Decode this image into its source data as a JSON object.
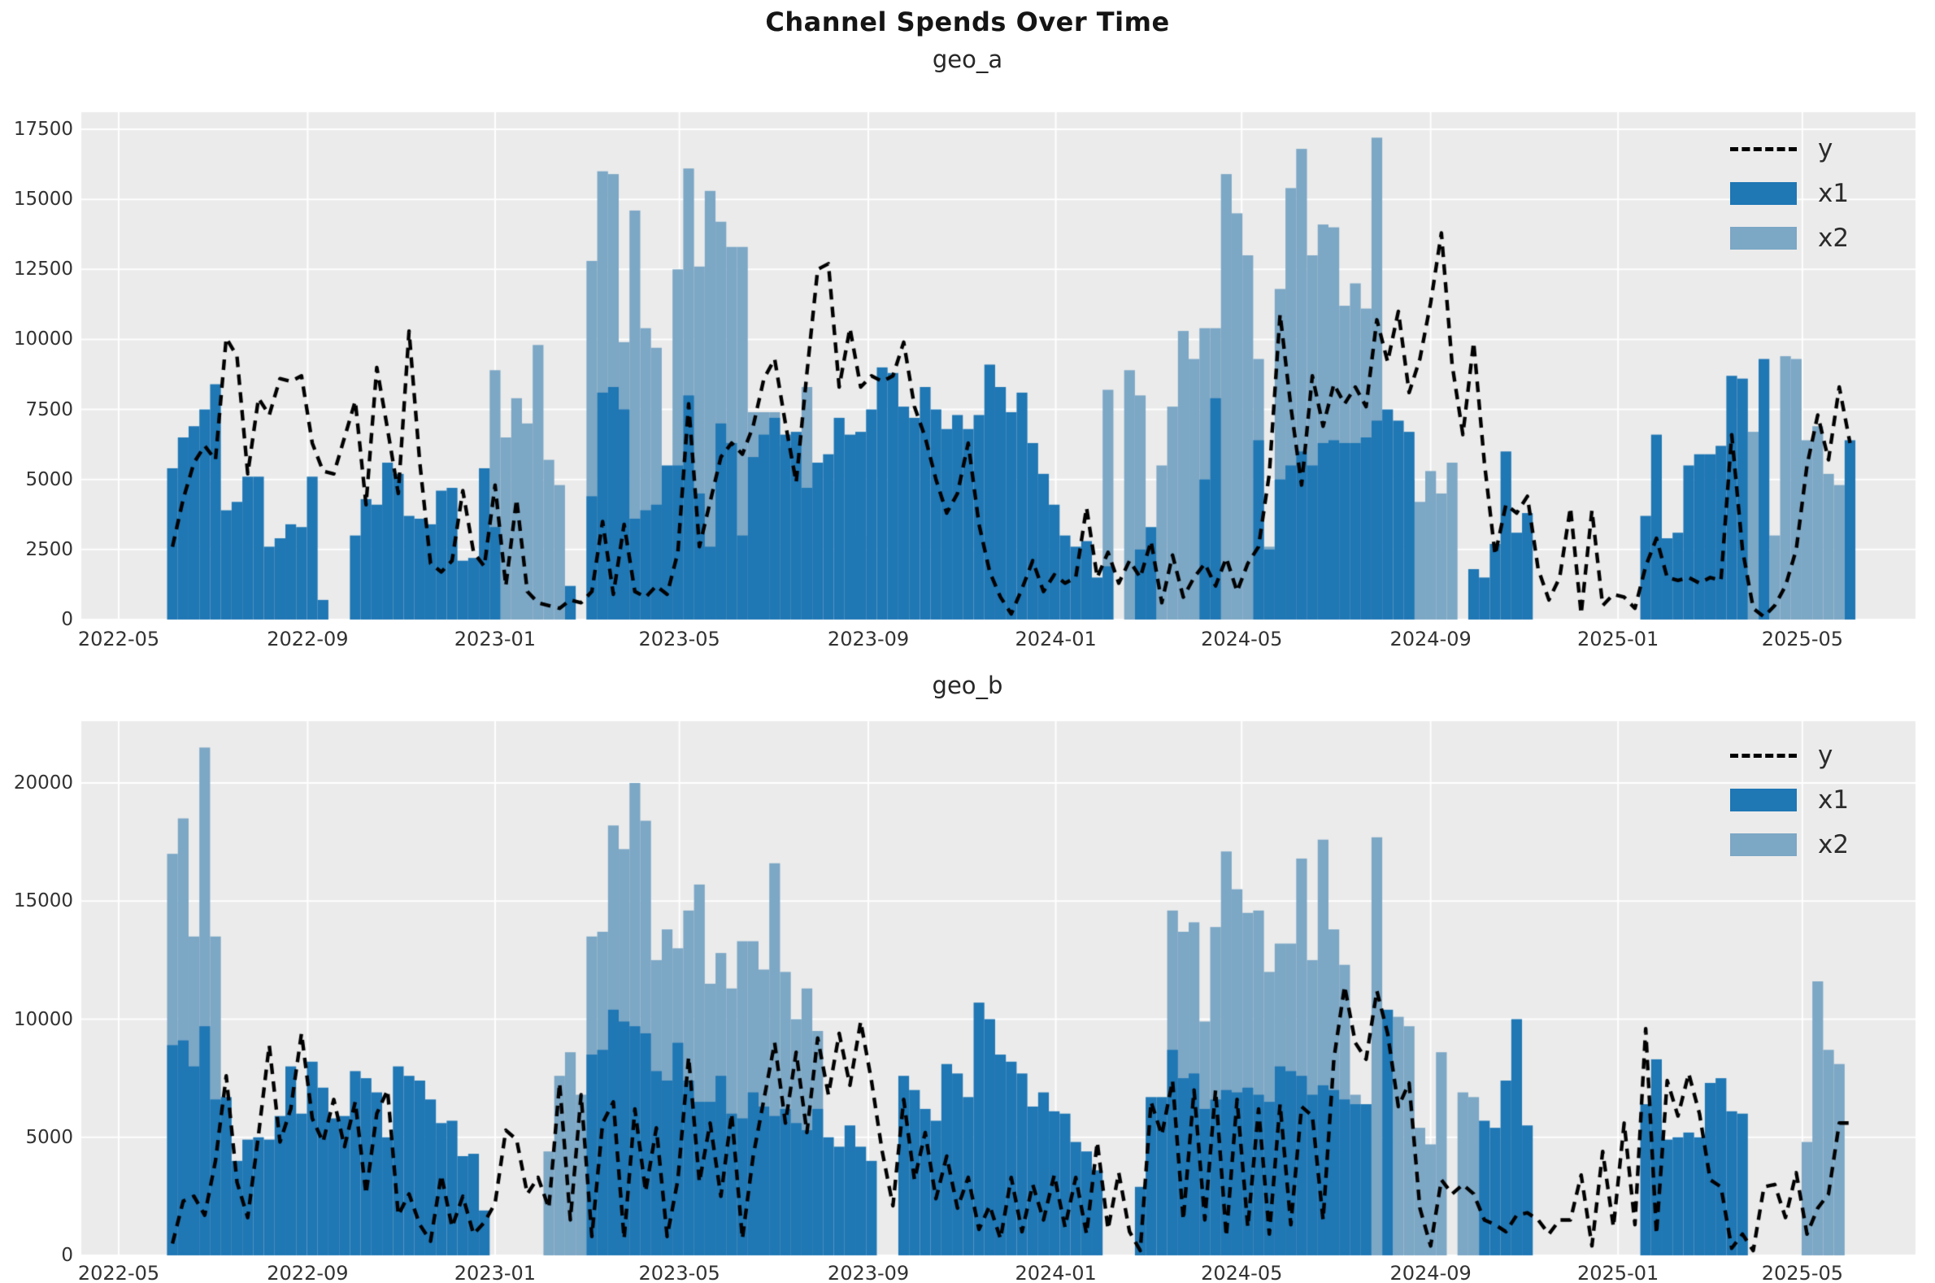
{
  "figure": {
    "title": "Channel Spends Over Time",
    "background": "#ffffff",
    "plot_background": "#ebebeb",
    "grid_color": "#ffffff",
    "tick_color": "#323232"
  },
  "legend": {
    "entries": [
      {
        "label": "y",
        "type": "line",
        "color": "#000000"
      },
      {
        "label": "x1",
        "type": "bar",
        "color": "#1f77b4"
      },
      {
        "label": "x2",
        "type": "bar",
        "color": "#7ca7c5"
      }
    ]
  },
  "chart_data": [
    {
      "type": "bar",
      "title": "geo_a",
      "start_date": "2022-06-05",
      "freq_days": 7,
      "ylim": [
        0,
        17500
      ],
      "yticks": [
        0,
        2500,
        5000,
        7500,
        10000,
        12500,
        15000,
        17500
      ],
      "xticks": [
        "2022-05",
        "2022-09",
        "2023-01",
        "2023-05",
        "2023-09",
        "2024-01",
        "2024-05",
        "2024-09",
        "2025-01",
        "2025-05"
      ],
      "grid": true,
      "legend_position": "upper right",
      "series": [
        {
          "name": "y",
          "type": "line",
          "style": "dashed",
          "color": "#000000",
          "values": [
            2600,
            4300,
            5600,
            6200,
            5700,
            10050,
            9400,
            5200,
            7900,
            7300,
            8600,
            8500,
            8700,
            6300,
            5300,
            5200,
            6500,
            7800,
            4100,
            9000,
            6800,
            4500,
            10300,
            5600,
            2000,
            1700,
            2100,
            4600,
            2400,
            1900,
            4800,
            1200,
            4300,
            1000,
            600,
            500,
            400,
            700,
            600,
            1000,
            3500,
            900,
            3400,
            1000,
            800,
            1200,
            900,
            2400,
            7700,
            2600,
            4200,
            5800,
            6300,
            5900,
            6900,
            8600,
            9300,
            7000,
            4900,
            8800,
            12500,
            12700,
            8300,
            10400,
            8300,
            8700,
            8500,
            8700,
            9900,
            7600,
            6500,
            5000,
            3800,
            4500,
            6300,
            3400,
            1700,
            800,
            200,
            1100,
            2100,
            1000,
            1600,
            1300,
            1500,
            4000,
            1500,
            2400,
            1300,
            2100,
            1500,
            2800,
            600,
            2300,
            800,
            1500,
            2000,
            1200,
            2200,
            1000,
            2000,
            2600,
            5200,
            10900,
            7600,
            4800,
            8700,
            6900,
            8400,
            7700,
            8300,
            7600,
            10700,
            9200,
            11000,
            8100,
            9300,
            11300,
            13800,
            9100,
            6600,
            9900,
            5600,
            2300,
            4100,
            3800,
            4400,
            1800,
            700,
            1500,
            4000,
            200,
            3900,
            500,
            900,
            800,
            400,
            1900,
            2900,
            1500,
            1400,
            1500,
            1300,
            1500,
            1400,
            6600,
            2500,
            400,
            100,
            500,
            1200,
            2500,
            5500,
            7300,
            5700,
            8300,
            6300
          ]
        },
        {
          "name": "x1",
          "type": "bar",
          "color": "#1f77b4",
          "values": [
            5400,
            6500,
            6900,
            7500,
            8400,
            3900,
            4200,
            5100,
            5100,
            2600,
            2900,
            3400,
            3300,
            5100,
            700,
            0,
            0,
            3000,
            4300,
            4100,
            5600,
            5200,
            3700,
            3600,
            3400,
            4600,
            4700,
            2100,
            2200,
            5400,
            3300,
            0,
            0,
            0,
            0,
            0,
            0,
            1200,
            0,
            4400,
            8100,
            8300,
            7500,
            3600,
            3900,
            4100,
            5500,
            5500,
            8000,
            4500,
            2600,
            7000,
            6300,
            3000,
            5800,
            6600,
            7200,
            6600,
            6700,
            4700,
            5600,
            5900,
            7200,
            6600,
            6700,
            7500,
            9000,
            8800,
            7600,
            7200,
            8300,
            7500,
            6800,
            7300,
            6800,
            7300,
            9100,
            8300,
            7400,
            8100,
            6300,
            5200,
            4100,
            3000,
            2600,
            2800,
            1500,
            1900,
            0,
            0,
            2500,
            3300,
            0,
            0,
            0,
            0,
            5000,
            7900,
            0,
            0,
            0,
            6400,
            2500,
            5000,
            5500,
            6000,
            5500,
            6300,
            6400,
            6300,
            6300,
            6500,
            7100,
            7500,
            7100,
            6700,
            0,
            0,
            0,
            0,
            0,
            1800,
            1500,
            2700,
            6000,
            3100,
            3800,
            0,
            0,
            0,
            0,
            0,
            0,
            0,
            0,
            0,
            0,
            3700,
            6600,
            2900,
            3100,
            5500,
            5900,
            5900,
            6200,
            8700,
            8600,
            0,
            9300,
            0,
            0,
            0,
            0,
            0,
            0,
            0,
            6400
          ]
        },
        {
          "name": "x2",
          "type": "bar",
          "color": "#7ca7c5",
          "values": [
            0,
            0,
            0,
            0,
            0,
            0,
            0,
            0,
            0,
            0,
            0,
            0,
            0,
            0,
            0,
            0,
            0,
            0,
            0,
            0,
            0,
            0,
            0,
            0,
            0,
            0,
            0,
            0,
            0,
            0,
            8900,
            6500,
            7900,
            7000,
            9800,
            5700,
            4800,
            900,
            0,
            12800,
            16000,
            15900,
            9900,
            14600,
            10400,
            9700,
            5200,
            12500,
            16100,
            12600,
            15300,
            14200,
            13300,
            13300,
            7400,
            7400,
            7400,
            6200,
            0,
            8300,
            0,
            0,
            0,
            0,
            3000,
            0,
            0,
            0,
            0,
            0,
            0,
            0,
            0,
            0,
            0,
            0,
            0,
            0,
            0,
            0,
            0,
            0,
            0,
            0,
            0,
            0,
            0,
            8200,
            0,
            8900,
            8000,
            2500,
            5500,
            7600,
            10300,
            9300,
            10400,
            10400,
            15900,
            14500,
            13000,
            9300,
            2600,
            11800,
            15400,
            16800,
            13000,
            14100,
            14000,
            11200,
            12000,
            11100,
            17200,
            0,
            0,
            5000,
            4200,
            5300,
            4500,
            5600,
            0,
            0,
            0,
            0,
            0,
            0,
            0,
            0,
            0,
            0,
            0,
            0,
            0,
            0,
            0,
            0,
            0,
            0,
            0,
            0,
            0,
            0,
            0,
            0,
            0,
            0,
            0,
            6700,
            0,
            3000,
            9400,
            9300,
            6400,
            6900,
            5200,
            4800,
            0
          ]
        }
      ]
    },
    {
      "type": "bar",
      "title": "geo_b",
      "start_date": "2022-06-05",
      "freq_days": 7,
      "ylim": [
        0,
        22500
      ],
      "yticks": [
        0,
        5000,
        10000,
        15000,
        20000
      ],
      "xticks": [
        "2022-05",
        "2022-09",
        "2023-01",
        "2023-05",
        "2023-09",
        "2024-01",
        "2024-05",
        "2024-09",
        "2025-01",
        "2025-05"
      ],
      "grid": true,
      "legend_position": "upper right",
      "series": [
        {
          "name": "y",
          "type": "line",
          "style": "dashed",
          "color": "#000000",
          "values": [
            500,
            2300,
            2500,
            1700,
            4000,
            7600,
            3100,
            1600,
            5100,
            8900,
            4800,
            6200,
            9400,
            5800,
            4800,
            6600,
            4600,
            6500,
            2600,
            6000,
            7000,
            1700,
            2600,
            1300,
            600,
            3400,
            1200,
            2500,
            900,
            1400,
            2200,
            5300,
            4900,
            2600,
            3300,
            2000,
            7300,
            1500,
            6800,
            800,
            5600,
            6500,
            700,
            6200,
            2700,
            5400,
            800,
            3200,
            8400,
            3100,
            5600,
            2500,
            6000,
            700,
            4200,
            6600,
            9000,
            5600,
            8600,
            5200,
            9200,
            6800,
            9400,
            7200,
            9900,
            7400,
            4400,
            2100,
            6600,
            3200,
            5200,
            2400,
            4200,
            2000,
            3300,
            1100,
            2100,
            700,
            3300,
            1000,
            3000,
            1500,
            3400,
            1200,
            3300,
            900,
            4800,
            1100,
            3500,
            1000,
            200,
            6500,
            5100,
            7400,
            1500,
            7000,
            1500,
            7000,
            800,
            6600,
            1200,
            6200,
            900,
            6400,
            1300,
            6300,
            5900,
            1500,
            8300,
            11400,
            9000,
            8300,
            11200,
            9400,
            6300,
            7300,
            2000,
            400,
            3200,
            2600,
            3000,
            2600,
            1500,
            1300,
            1000,
            1700,
            1800,
            1500,
            900,
            1500,
            1500,
            3400,
            400,
            4400,
            1200,
            5600,
            1300,
            9600,
            900,
            7400,
            5900,
            7700,
            6000,
            3200,
            2900,
            300,
            900,
            200,
            2900,
            3000,
            1600,
            3500,
            900,
            2000,
            2600,
            5600,
            5600
          ]
        },
        {
          "name": "x1",
          "type": "bar",
          "color": "#1f77b4",
          "values": [
            8900,
            9100,
            8000,
            9700,
            6600,
            6700,
            4000,
            4900,
            5000,
            4900,
            5900,
            8000,
            6000,
            8200,
            7100,
            5800,
            5900,
            7800,
            7500,
            6900,
            5000,
            8000,
            7600,
            7400,
            6600,
            5600,
            5700,
            4200,
            4300,
            1900,
            0,
            0,
            0,
            0,
            0,
            0,
            0,
            0,
            0,
            8500,
            8700,
            10400,
            9900,
            9700,
            9400,
            7800,
            7400,
            9000,
            7400,
            6500,
            6500,
            7600,
            6000,
            5800,
            6900,
            6300,
            5900,
            6200,
            5600,
            5300,
            6200,
            5000,
            4600,
            5500,
            4600,
            4000,
            0,
            0,
            7600,
            7000,
            6200,
            5700,
            8100,
            7700,
            6700,
            10700,
            10000,
            8500,
            8200,
            7700,
            6300,
            6900,
            6100,
            6000,
            4800,
            4400,
            3600,
            0,
            0,
            0,
            2900,
            6700,
            6700,
            8700,
            7500,
            7700,
            6200,
            6600,
            7000,
            6900,
            7100,
            6800,
            6500,
            8000,
            7800,
            7600,
            6800,
            7200,
            7000,
            6600,
            6400,
            6400,
            0,
            10400,
            0,
            0,
            0,
            0,
            0,
            0,
            0,
            0,
            5700,
            5400,
            7400,
            10000,
            5500,
            0,
            0,
            0,
            0,
            0,
            0,
            0,
            0,
            0,
            0,
            6400,
            8300,
            4900,
            5000,
            5200,
            5000,
            7300,
            7500,
            6100,
            6000,
            0,
            0,
            0,
            0,
            0,
            0,
            0,
            0,
            0,
            0
          ]
        },
        {
          "name": "x2",
          "type": "bar",
          "color": "#7ca7c5",
          "values": [
            17000,
            18500,
            13500,
            21500,
            13500,
            0,
            0,
            0,
            0,
            0,
            0,
            0,
            0,
            0,
            0,
            0,
            0,
            0,
            0,
            0,
            0,
            0,
            0,
            0,
            0,
            0,
            0,
            0,
            0,
            0,
            0,
            0,
            0,
            0,
            0,
            4400,
            7600,
            8600,
            6800,
            13500,
            13700,
            18200,
            17200,
            20000,
            18400,
            12500,
            13800,
            13000,
            14600,
            15700,
            11500,
            12800,
            11300,
            13300,
            13300,
            12100,
            16600,
            12000,
            10000,
            11300,
            9500,
            0,
            0,
            0,
            0,
            0,
            0,
            0,
            0,
            0,
            0,
            0,
            0,
            0,
            0,
            0,
            0,
            0,
            0,
            0,
            0,
            0,
            0,
            0,
            0,
            0,
            0,
            0,
            0,
            0,
            0,
            0,
            0,
            14600,
            13700,
            14100,
            9900,
            13900,
            17100,
            15500,
            14500,
            14600,
            12000,
            13200,
            13200,
            16800,
            12500,
            17600,
            13800,
            12300,
            6800,
            0,
            17700,
            0,
            10100,
            9700,
            5400,
            4700,
            8600,
            0,
            6900,
            6700,
            0,
            0,
            0,
            0,
            0,
            0,
            0,
            0,
            0,
            0,
            0,
            0,
            0,
            0,
            0,
            0,
            0,
            0,
            0,
            0,
            0,
            0,
            0,
            0,
            0,
            0,
            0,
            0,
            0,
            0,
            4800,
            11600,
            8700,
            8100,
            0
          ]
        }
      ]
    }
  ]
}
